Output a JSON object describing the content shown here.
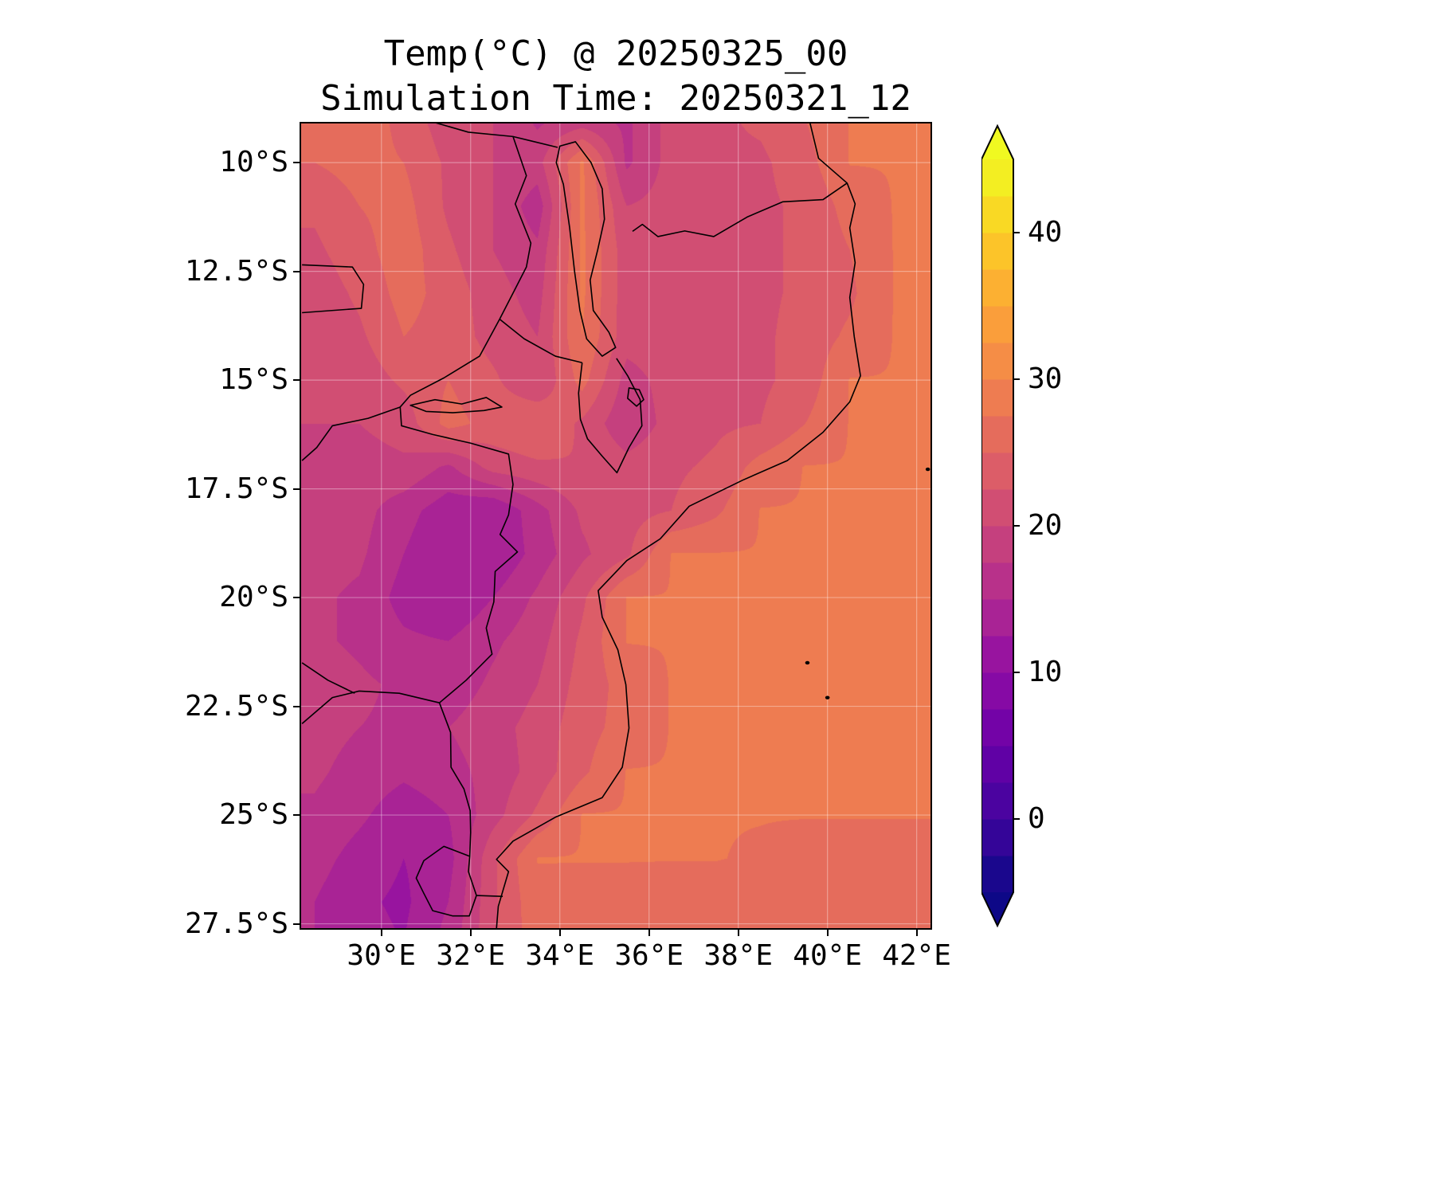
{
  "title": {
    "line1": "Temp(°C) @ 20250325_00",
    "line2": "Simulation Time: 20250321_12"
  },
  "axes": {
    "y_ticks": [
      {
        "label": "10°S",
        "value": 10
      },
      {
        "label": "12.5°S",
        "value": 12.5
      },
      {
        "label": "15°S",
        "value": 15
      },
      {
        "label": "17.5°S",
        "value": 17.5
      },
      {
        "label": "20°S",
        "value": 20
      },
      {
        "label": "22.5°S",
        "value": 22.5
      },
      {
        "label": "25°S",
        "value": 25
      },
      {
        "label": "27.5°S",
        "value": 27.5
      }
    ],
    "x_ticks": [
      {
        "label": "30°E",
        "value": 30
      },
      {
        "label": "32°E",
        "value": 32
      },
      {
        "label": "34°E",
        "value": 34
      },
      {
        "label": "36°E",
        "value": 36
      },
      {
        "label": "38°E",
        "value": 38
      },
      {
        "label": "40°E",
        "value": 40
      },
      {
        "label": "42°E",
        "value": 42
      }
    ]
  },
  "colorbar": {
    "ticks": [
      {
        "label": "40",
        "value": 40
      },
      {
        "label": "30",
        "value": 30
      },
      {
        "label": "20",
        "value": 20
      },
      {
        "label": "10",
        "value": 10
      },
      {
        "label": "0",
        "value": 0
      }
    ],
    "levels": {
      "min": -5,
      "max": 45,
      "step": 2.5
    },
    "extend": "both",
    "colormap": "plasma"
  },
  "colors": {
    "background": "#ffffff",
    "frame": "#000000",
    "grid": "#ffffff",
    "border_lines": "#000000"
  },
  "chart_data": {
    "type": "heatmap",
    "title": "Temp(°C) @ 20250325_00",
    "subtitle": "Simulation Time: 20250321_12",
    "variable": "Temp",
    "units": "°C",
    "lon_range": [
      28.2,
      42.31
    ],
    "lat_range_south": [
      9.1,
      27.6
    ],
    "lon": [
      28.5,
      29.5,
      30.5,
      31.5,
      32.5,
      33.5,
      34.5,
      35.5,
      36.5,
      37.5,
      38.5,
      39.5,
      40.5,
      41.5,
      42.5
    ],
    "lat": [
      9,
      10,
      11,
      12,
      13,
      14,
      15,
      16,
      17,
      18,
      19,
      20,
      21,
      22,
      23,
      24,
      25,
      26,
      27,
      28
    ],
    "values": [
      [
        26,
        27,
        24,
        21,
        20,
        17,
        18,
        17,
        21,
        22,
        23,
        25,
        27.6,
        27.6,
        27.6
      ],
      [
        25,
        26,
        25,
        22,
        20,
        19,
        28,
        17,
        21,
        22,
        22,
        24,
        27.6,
        27.6,
        27.6
      ],
      [
        23,
        25,
        26,
        22,
        20,
        16,
        28,
        20,
        21,
        21.5,
        22,
        23,
        26,
        27.6,
        27.6
      ],
      [
        22,
        24,
        26.5,
        23,
        20,
        18,
        28,
        21,
        21,
        21.5,
        22,
        23,
        25,
        27.6,
        27.6
      ],
      [
        21,
        23,
        26,
        24,
        21,
        19,
        28,
        21,
        21,
        21.5,
        22,
        23,
        24.5,
        27.6,
        27.6
      ],
      [
        20.5,
        22,
        25,
        24,
        21.5,
        20,
        27.5,
        21,
        21.5,
        21.5,
        22,
        23.5,
        25.5,
        27.6,
        27.6
      ],
      [
        20.5,
        21,
        23,
        25,
        23,
        20,
        26,
        19,
        21,
        21.5,
        22,
        23.5,
        27.6,
        27.6,
        27.6
      ],
      [
        20,
        20,
        21,
        26,
        24,
        25,
        22,
        18,
        21,
        22,
        22.5,
        25,
        27.6,
        27.6,
        27.6
      ],
      [
        19.5,
        19,
        19.5,
        17,
        21,
        22,
        22.5,
        21,
        22,
        23,
        26,
        27.6,
        27.6,
        27.6,
        27.6
      ],
      [
        19,
        18.5,
        16,
        13.5,
        12.5,
        16.5,
        20.5,
        21.5,
        22.5,
        24.5,
        27.6,
        27.6,
        27.6,
        27.6,
        27.6
      ],
      [
        18.5,
        18,
        15,
        12.5,
        12.5,
        16,
        19.5,
        22,
        27.6,
        27.6,
        27.6,
        27.6,
        27.6,
        27.6,
        27.6
      ],
      [
        18,
        17,
        14,
        12.5,
        15,
        18,
        22,
        27.6,
        27.6,
        27.6,
        27.6,
        27.6,
        27.6,
        27.6,
        27.6
      ],
      [
        18,
        17,
        15.5,
        15,
        17,
        19,
        23,
        27.6,
        27.6,
        27.6,
        27.6,
        27.6,
        27.6,
        27.6,
        27.6
      ],
      [
        19,
        18,
        17,
        16,
        18,
        20,
        23.5,
        26,
        27.6,
        27.6,
        27.6,
        27.6,
        27.6,
        27.6,
        27.6
      ],
      [
        18.5,
        17.5,
        17,
        17.5,
        19,
        21,
        24,
        26,
        27.6,
        27.6,
        27.6,
        27.6,
        27.6,
        27.6,
        27.6
      ],
      [
        18,
        16.5,
        15.5,
        16.5,
        18.5,
        21,
        24.5,
        27.6,
        27.6,
        27.6,
        27.6,
        27.6,
        27.6,
        27.6,
        27.6
      ],
      [
        17,
        15.5,
        13.5,
        15,
        19,
        23,
        27.6,
        27.6,
        27.6,
        27.6,
        27.6,
        27.6,
        27.6,
        27.6,
        27.6
      ],
      [
        16,
        14,
        12.5,
        14,
        22,
        27.6,
        27.6,
        27.6,
        27.6,
        27.6,
        27.2,
        26.5,
        26.5,
        26.5,
        26.5
      ],
      [
        15,
        13,
        12,
        15,
        22,
        26.8,
        26.5,
        26.5,
        26,
        26,
        26,
        26,
        26,
        26,
        26
      ],
      [
        15,
        13.5,
        12.5,
        16,
        22,
        26.5,
        26.3,
        26,
        26,
        26,
        26,
        26,
        26,
        26,
        26
      ]
    ],
    "colormap_anchors": [
      "#0d0887",
      "#41049d",
      "#6a00a8",
      "#8f0da4",
      "#b12a90",
      "#cc4778",
      "#e16462",
      "#f2844b",
      "#fca636",
      "#fcce25",
      "#f0f921"
    ]
  },
  "map": {
    "border_segments": [
      {
        "name": "coastline",
        "closed": false,
        "points": [
          [
            39.6,
            9.05
          ],
          [
            39.8,
            9.9
          ],
          [
            40.44,
            10.47
          ],
          [
            40.62,
            10.95
          ],
          [
            40.5,
            11.5
          ],
          [
            40.62,
            12.3
          ],
          [
            40.5,
            13.1
          ],
          [
            40.6,
            14.0
          ],
          [
            40.74,
            14.9
          ],
          [
            40.5,
            15.5
          ],
          [
            39.9,
            16.2
          ],
          [
            39.1,
            16.85
          ],
          [
            38.1,
            17.3
          ],
          [
            36.9,
            17.9
          ],
          [
            36.25,
            18.65
          ],
          [
            35.5,
            19.15
          ],
          [
            34.86,
            19.84
          ],
          [
            34.95,
            20.45
          ],
          [
            35.3,
            21.2
          ],
          [
            35.48,
            22.0
          ],
          [
            35.55,
            23.0
          ],
          [
            35.4,
            23.9
          ],
          [
            34.95,
            24.6
          ],
          [
            33.9,
            25.05
          ],
          [
            32.95,
            25.6
          ],
          [
            32.58,
            26.02
          ],
          [
            32.85,
            26.3
          ],
          [
            32.62,
            27.1
          ],
          [
            32.58,
            27.6
          ]
        ]
      },
      {
        "name": "rovuma-tz-mz",
        "closed": false,
        "points": [
          [
            40.44,
            10.47
          ],
          [
            39.9,
            10.85
          ],
          [
            39.0,
            10.9
          ],
          [
            38.2,
            11.25
          ],
          [
            37.45,
            11.7
          ],
          [
            36.8,
            11.57
          ],
          [
            36.2,
            11.7
          ],
          [
            35.85,
            11.42
          ],
          [
            35.63,
            11.58
          ]
        ]
      },
      {
        "name": "tz-zambia-malawi",
        "closed": false,
        "points": [
          [
            31.1,
            9.05
          ],
          [
            31.95,
            9.3
          ],
          [
            32.95,
            9.4
          ],
          [
            33.35,
            9.5
          ],
          [
            33.95,
            9.65
          ]
        ]
      },
      {
        "name": "lake-malawi",
        "closed": true,
        "points": [
          [
            34.0,
            9.62
          ],
          [
            34.35,
            9.52
          ],
          [
            34.7,
            10.0
          ],
          [
            34.95,
            10.6
          ],
          [
            35.0,
            11.3
          ],
          [
            34.85,
            12.0
          ],
          [
            34.68,
            12.7
          ],
          [
            34.75,
            13.4
          ],
          [
            35.1,
            13.9
          ],
          [
            35.25,
            14.25
          ],
          [
            34.95,
            14.45
          ],
          [
            34.6,
            14.05
          ],
          [
            34.45,
            13.4
          ],
          [
            34.33,
            12.5
          ],
          [
            34.22,
            11.5
          ],
          [
            34.08,
            10.5
          ],
          [
            33.92,
            10.0
          ]
        ]
      },
      {
        "name": "malawi-west",
        "closed": false,
        "points": [
          [
            32.95,
            9.4
          ],
          [
            33.25,
            10.3
          ],
          [
            33.0,
            10.95
          ],
          [
            33.35,
            11.85
          ],
          [
            33.25,
            12.4
          ],
          [
            33.0,
            12.9
          ],
          [
            32.65,
            13.6
          ]
        ]
      },
      {
        "name": "malawi-moz-north",
        "closed": false,
        "points": [
          [
            32.65,
            13.6
          ],
          [
            33.2,
            14.05
          ],
          [
            33.9,
            14.45
          ],
          [
            34.5,
            14.6
          ]
        ]
      },
      {
        "name": "malawi-south",
        "closed": false,
        "points": [
          [
            34.5,
            14.6
          ],
          [
            34.42,
            15.3
          ],
          [
            34.46,
            15.9
          ],
          [
            34.62,
            16.35
          ],
          [
            34.95,
            16.75
          ],
          [
            35.28,
            17.13
          ],
          [
            35.55,
            16.55
          ],
          [
            35.84,
            16.05
          ],
          [
            35.8,
            15.45
          ],
          [
            35.52,
            14.9
          ],
          [
            35.27,
            14.5
          ]
        ]
      },
      {
        "name": "zambia-moz",
        "closed": false,
        "points": [
          [
            32.65,
            13.6
          ],
          [
            32.2,
            14.45
          ],
          [
            31.4,
            14.95
          ],
          [
            30.65,
            15.35
          ],
          [
            30.42,
            15.62
          ]
        ]
      },
      {
        "name": "zambia-zim-zambezi",
        "closed": false,
        "points": [
          [
            30.42,
            15.62
          ],
          [
            29.7,
            15.88
          ],
          [
            28.9,
            16.05
          ],
          [
            28.55,
            16.55
          ],
          [
            28.22,
            16.85
          ]
        ]
      },
      {
        "name": "zim-moz",
        "closed": false,
        "points": [
          [
            30.42,
            15.62
          ],
          [
            30.45,
            16.05
          ],
          [
            31.15,
            16.25
          ],
          [
            32.0,
            16.45
          ],
          [
            32.85,
            16.7
          ],
          [
            32.95,
            17.4
          ],
          [
            32.85,
            18.1
          ],
          [
            32.66,
            18.55
          ],
          [
            33.05,
            18.95
          ],
          [
            32.55,
            19.4
          ],
          [
            32.52,
            20.1
          ],
          [
            32.35,
            20.7
          ],
          [
            32.48,
            21.3
          ],
          [
            31.9,
            21.9
          ],
          [
            31.3,
            22.42
          ]
        ]
      },
      {
        "name": "limpopo-sa-zim",
        "closed": false,
        "points": [
          [
            31.3,
            22.42
          ],
          [
            30.4,
            22.2
          ],
          [
            29.5,
            22.15
          ],
          [
            28.9,
            22.3
          ],
          [
            28.22,
            22.9
          ]
        ]
      },
      {
        "name": "botswana-zim",
        "closed": false,
        "points": [
          [
            29.4,
            22.2
          ],
          [
            28.8,
            21.9
          ],
          [
            28.22,
            21.5
          ]
        ]
      },
      {
        "name": "sa-moz",
        "closed": false,
        "points": [
          [
            31.3,
            22.42
          ],
          [
            31.55,
            23.1
          ],
          [
            31.56,
            23.9
          ],
          [
            31.85,
            24.4
          ],
          [
            31.99,
            24.9
          ],
          [
            32.0,
            25.4
          ],
          [
            31.98,
            25.95
          ]
        ]
      },
      {
        "name": "eswatini",
        "closed": true,
        "points": [
          [
            31.98,
            25.95
          ],
          [
            31.4,
            25.72
          ],
          [
            30.95,
            26.05
          ],
          [
            30.78,
            26.45
          ],
          [
            30.95,
            26.8
          ],
          [
            31.15,
            27.2
          ],
          [
            31.6,
            27.32
          ],
          [
            31.97,
            27.32
          ],
          [
            32.13,
            26.85
          ],
          [
            31.95,
            26.3
          ]
        ]
      },
      {
        "name": "moz-sa-east",
        "closed": false,
        "points": [
          [
            32.13,
            26.85
          ],
          [
            32.72,
            26.87
          ]
        ]
      },
      {
        "name": "cahora-bassa",
        "closed": true,
        "points": [
          [
            30.65,
            15.58
          ],
          [
            31.2,
            15.45
          ],
          [
            31.8,
            15.55
          ],
          [
            32.35,
            15.4
          ],
          [
            32.7,
            15.62
          ],
          [
            32.3,
            15.7
          ],
          [
            31.6,
            15.75
          ],
          [
            31.0,
            15.72
          ]
        ]
      },
      {
        "name": "congo-pedicle",
        "closed": false,
        "points": [
          [
            28.22,
            12.35
          ],
          [
            29.35,
            12.4
          ],
          [
            29.6,
            12.8
          ],
          [
            29.55,
            13.35
          ],
          [
            28.22,
            13.45
          ]
        ]
      },
      {
        "name": "lake-chilwa",
        "closed": true,
        "points": [
          [
            35.55,
            15.18
          ],
          [
            35.78,
            15.22
          ],
          [
            35.88,
            15.45
          ],
          [
            35.72,
            15.6
          ],
          [
            35.52,
            15.42
          ]
        ]
      }
    ],
    "islands": [
      [
        40.0,
        22.3
      ],
      [
        39.55,
        21.5
      ],
      [
        42.25,
        17.05
      ]
    ]
  }
}
